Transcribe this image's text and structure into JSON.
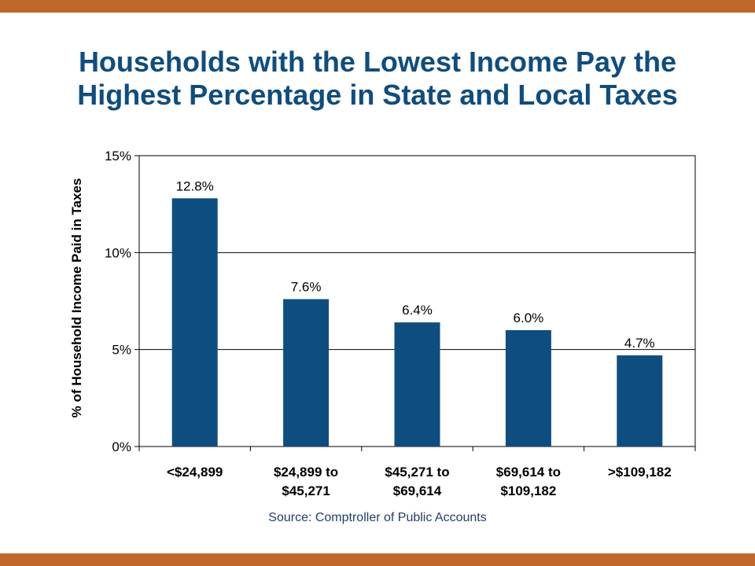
{
  "colors": {
    "band": "#c0672b",
    "title": "#0e4d80",
    "bar": "#0e4d80",
    "source": "#1f3f6b"
  },
  "title": {
    "line1": "Households with the Lowest Income Pay the",
    "line2": "Highest Percentage in State and Local Taxes"
  },
  "source": "Source: Comptroller of Public Accounts",
  "chart_data": {
    "type": "bar",
    "title": "Households with the Lowest Income Pay the Highest Percentage in State and Local Taxes",
    "xlabel": "",
    "ylabel": "% of Household Income Paid in Taxes",
    "ylim": [
      0,
      15
    ],
    "yticks": [
      0,
      5,
      10,
      15
    ],
    "ytick_labels": [
      "0%",
      "5%",
      "10%",
      "15%"
    ],
    "grid": "horizontal",
    "categories": [
      [
        "<$24,899"
      ],
      [
        "$24,899 to",
        "$45,271"
      ],
      [
        "$45,271 to",
        "$69,614"
      ],
      [
        "$69,614 to",
        "$109,182"
      ],
      [
        ">$109,182"
      ]
    ],
    "values": [
      12.8,
      7.6,
      6.4,
      6.0,
      4.7
    ],
    "data_labels": [
      "12.8%",
      "7.6%",
      "6.4%",
      "6.0%",
      "4.7%"
    ]
  }
}
